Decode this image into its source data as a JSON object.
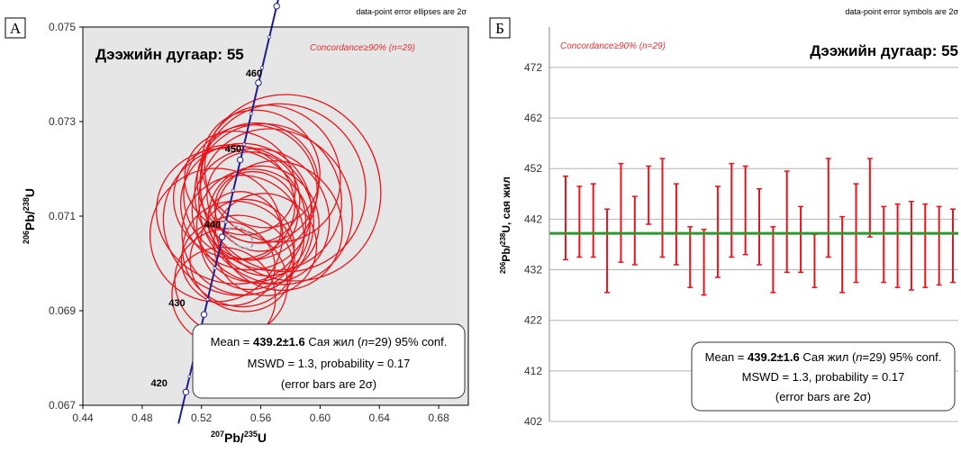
{
  "chart_data": [
    {
      "type": "scatter",
      "panel_label": "А",
      "note": "data-point error ellipses are 2σ",
      "title": "Дээжийн дугаар: 55",
      "concordance": "Concordance≥90% (n=29)",
      "xlabel_parts": [
        "207",
        "Pb/",
        "235",
        "U"
      ],
      "ylabel_parts": [
        "206",
        "Pb/",
        "238",
        "U"
      ],
      "xlim": [
        0.44,
        0.7
      ],
      "ylim": [
        0.067,
        0.075
      ],
      "xticks": [
        "0.44",
        "0.48",
        "0.52",
        "0.56",
        "0.60",
        "0.64",
        "0.68"
      ],
      "yticks": [
        "0.067",
        "0.069",
        "0.071",
        "0.073",
        "0.075"
      ],
      "concordia_points": [
        {
          "x": 0.5095,
          "y": 0.06728
        },
        {
          "x": 0.5217,
          "y": 0.06892
        },
        {
          "x": 0.5339,
          "y": 0.07056
        },
        {
          "x": 0.5461,
          "y": 0.07219
        },
        {
          "x": 0.5584,
          "y": 0.07382
        },
        {
          "x": 0.5707,
          "y": 0.07544
        }
      ],
      "concordia_markers": [
        {
          "x": 0.5119,
          "y": 0.06761
        },
        {
          "x": 0.5168,
          "y": 0.06826
        },
        {
          "x": 0.5241,
          "y": 0.06924
        },
        {
          "x": 0.529,
          "y": 0.0699
        },
        {
          "x": 0.5364,
          "y": 0.07088
        },
        {
          "x": 0.5413,
          "y": 0.07154
        },
        {
          "x": 0.5486,
          "y": 0.07252
        },
        {
          "x": 0.5535,
          "y": 0.07317
        },
        {
          "x": 0.5609,
          "y": 0.07414
        },
        {
          "x": 0.5658,
          "y": 0.07479
        },
        {
          "x": 0.5732,
          "y": 0.07576
        }
      ],
      "age_labels": [
        {
          "text": "420",
          "x": 0.497,
          "y": 0.0674
        },
        {
          "text": "430",
          "x": 0.509,
          "y": 0.0691
        },
        {
          "text": "440",
          "x": 0.533,
          "y": 0.07075
        },
        {
          "text": "450",
          "x": 0.547,
          "y": 0.07235
        },
        {
          "text": "460",
          "x": 0.561,
          "y": 0.07395
        }
      ],
      "ellipses": [
        {
          "cx": 0.55,
          "cy": 0.0712,
          "rx": 0.042,
          "ry": 0.0014,
          "angle": -60
        },
        {
          "cx": 0.555,
          "cy": 0.0708,
          "rx": 0.038,
          "ry": 0.0012,
          "angle": -55
        },
        {
          "cx": 0.56,
          "cy": 0.071,
          "rx": 0.044,
          "ry": 0.0015,
          "angle": -50
        },
        {
          "cx": 0.548,
          "cy": 0.0706,
          "rx": 0.04,
          "ry": 0.0013,
          "angle": -62
        },
        {
          "cx": 0.565,
          "cy": 0.0714,
          "rx": 0.048,
          "ry": 0.0016,
          "angle": -45
        },
        {
          "cx": 0.545,
          "cy": 0.0702,
          "rx": 0.035,
          "ry": 0.0012,
          "angle": -65
        },
        {
          "cx": 0.553,
          "cy": 0.0715,
          "rx": 0.046,
          "ry": 0.0014,
          "angle": -58
        },
        {
          "cx": 0.57,
          "cy": 0.0712,
          "rx": 0.05,
          "ry": 0.0017,
          "angle": -40
        },
        {
          "cx": 0.54,
          "cy": 0.071,
          "rx": 0.045,
          "ry": 0.0016,
          "angle": -70
        },
        {
          "cx": 0.575,
          "cy": 0.0716,
          "rx": 0.055,
          "ry": 0.0018,
          "angle": -35
        },
        {
          "cx": 0.545,
          "cy": 0.0709,
          "rx": 0.05,
          "ry": 0.0016,
          "angle": -55
        },
        {
          "cx": 0.58,
          "cy": 0.0716,
          "rx": 0.06,
          "ry": 0.002,
          "angle": -30
        },
        {
          "cx": 0.53,
          "cy": 0.0706,
          "rx": 0.045,
          "ry": 0.0014,
          "angle": -75
        },
        {
          "cx": 0.547,
          "cy": 0.07,
          "rx": 0.032,
          "ry": 0.0011,
          "angle": -68
        },
        {
          "cx": 0.558,
          "cy": 0.0717,
          "rx": 0.04,
          "ry": 0.0013,
          "angle": -52
        },
        {
          "cx": 0.562,
          "cy": 0.0709,
          "rx": 0.036,
          "ry": 0.0012,
          "angle": -48
        },
        {
          "cx": 0.551,
          "cy": 0.0704,
          "rx": 0.03,
          "ry": 0.001,
          "angle": -63
        },
        {
          "cx": 0.568,
          "cy": 0.0719,
          "rx": 0.044,
          "ry": 0.0015,
          "angle": -42
        },
        {
          "cx": 0.542,
          "cy": 0.0713,
          "rx": 0.038,
          "ry": 0.0013,
          "angle": -66
        },
        {
          "cx": 0.557,
          "cy": 0.0711,
          "rx": 0.026,
          "ry": 0.0009,
          "angle": -57
        },
        {
          "cx": 0.549,
          "cy": 0.0708,
          "rx": 0.022,
          "ry": 0.0008,
          "angle": -60
        },
        {
          "cx": 0.563,
          "cy": 0.0704,
          "rx": 0.034,
          "ry": 0.0011,
          "angle": -50
        },
        {
          "cx": 0.538,
          "cy": 0.07,
          "rx": 0.028,
          "ry": 0.001,
          "angle": -72
        },
        {
          "cx": 0.572,
          "cy": 0.0708,
          "rx": 0.042,
          "ry": 0.0014,
          "angle": -38
        },
        {
          "cx": 0.546,
          "cy": 0.0717,
          "rx": 0.034,
          "ry": 0.0012,
          "angle": -62
        },
        {
          "cx": 0.555,
          "cy": 0.0714,
          "rx": 0.03,
          "ry": 0.001,
          "angle": -56
        },
        {
          "cx": 0.54,
          "cy": 0.0696,
          "rx": 0.036,
          "ry": 0.0012,
          "angle": -70
        },
        {
          "cx": 0.535,
          "cy": 0.0693,
          "rx": 0.033,
          "ry": 0.0011,
          "angle": -74
        },
        {
          "cx": 0.56,
          "cy": 0.072,
          "rx": 0.038,
          "ry": 0.0013,
          "angle": -47
        }
      ],
      "mean_ellipse": {
        "cx": 0.5465,
        "cy": 0.07055,
        "rx": 0.0055,
        "ry": 0.0003,
        "angle": -50
      },
      "stats": {
        "line1_prefix": "Mean = ",
        "line1_value": "439.2±1.6",
        "line1_mid": "  Сая жил (",
        "line1_n": "n",
        "line1_suffix": "=29)  95% conf.",
        "line2": "MSWD = 1.3, probability = 0.17",
        "line3": "(error bars are 2σ)"
      },
      "colors": {
        "background": "#e6e6e6",
        "ellipse": "#e8141c",
        "concordia": "#1e1e8c",
        "mean_ellipse": "#9ab0c0"
      }
    },
    {
      "type": "bar",
      "panel_label": "Б",
      "note": "data-point error symbols are 2σ",
      "title": "Дээжийн дугаар: 55",
      "concordance": "Concordance≥90% (n=29)",
      "ylabel_parts": [
        "206",
        "Pb/",
        "238",
        "U, сая жил"
      ],
      "ylim": [
        402,
        480
      ],
      "yticks": [
        "402",
        "412",
        "422",
        "432",
        "442",
        "452",
        "462",
        "472"
      ],
      "mean": 439.2,
      "error_bars": [
        {
          "lo": 434.0,
          "hi": 450.5
        },
        {
          "lo": 434.5,
          "hi": 448.5
        },
        {
          "lo": 434.5,
          "hi": 449.0
        },
        {
          "lo": 427.5,
          "hi": 444.0
        },
        {
          "lo": 433.5,
          "hi": 453.0
        },
        {
          "lo": 433.0,
          "hi": 446.5
        },
        {
          "lo": 441.0,
          "hi": 452.5
        },
        {
          "lo": 434.5,
          "hi": 454.0
        },
        {
          "lo": 433.0,
          "hi": 449.0
        },
        {
          "lo": 428.5,
          "hi": 440.5
        },
        {
          "lo": 427.0,
          "hi": 440.0
        },
        {
          "lo": 430.5,
          "hi": 448.5
        },
        {
          "lo": 434.5,
          "hi": 453.0
        },
        {
          "lo": 435.0,
          "hi": 452.5
        },
        {
          "lo": 433.0,
          "hi": 448.0
        },
        {
          "lo": 427.5,
          "hi": 440.5
        },
        {
          "lo": 431.5,
          "hi": 451.5
        },
        {
          "lo": 431.5,
          "hi": 444.5
        },
        {
          "lo": 428.5,
          "hi": 439.0
        },
        {
          "lo": 434.5,
          "hi": 454.0
        },
        {
          "lo": 427.5,
          "hi": 442.5
        },
        {
          "lo": 429.5,
          "hi": 449.0
        },
        {
          "lo": 438.5,
          "hi": 454.0
        },
        {
          "lo": 429.5,
          "hi": 444.5
        },
        {
          "lo": 428.5,
          "hi": 445.0
        },
        {
          "lo": 428.0,
          "hi": 445.5
        },
        {
          "lo": 428.5,
          "hi": 445.0
        },
        {
          "lo": 429.0,
          "hi": 444.5
        },
        {
          "lo": 429.5,
          "hi": 444.0
        }
      ],
      "stats": {
        "line1_prefix": "Mean = ",
        "line1_value": "439.2±1.6",
        "line1_mid": " Сая жил (",
        "line1_n": "n",
        "line1_suffix": "=29)  95% conf.",
        "line2": "MSWD = 1.3, probability = 0.17",
        "line3": "(error bars are 2σ)"
      },
      "colors": {
        "background": "#ffffff",
        "bar": "#e8141c",
        "mean_line": "#2a9a2a",
        "grid": "#b4b4b4"
      }
    }
  ]
}
